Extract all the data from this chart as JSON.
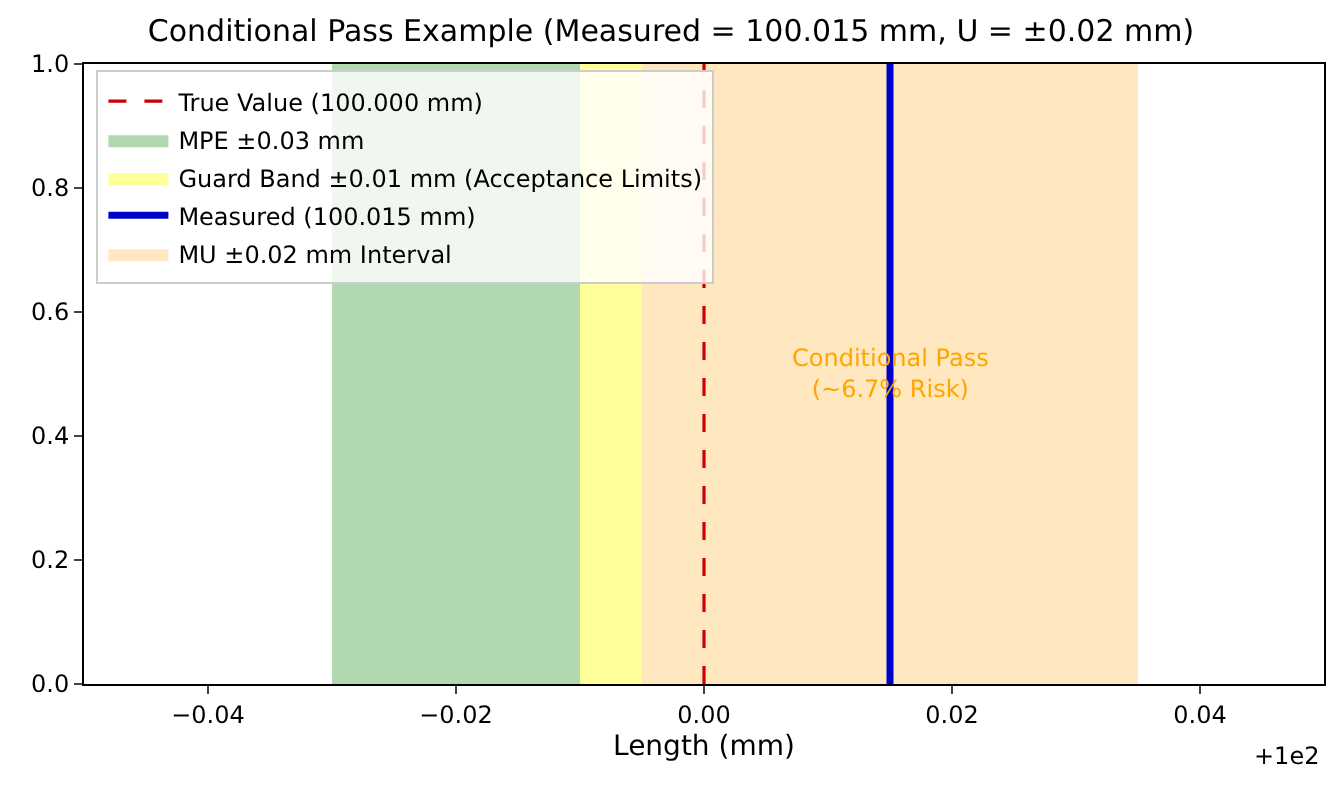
{
  "chart_data": {
    "type": "area",
    "title": "Conditional Pass Example (Measured = 100.015 mm, U = ±0.02 mm)",
    "xlabel": "Length (mm)",
    "xlim": [
      -0.05,
      0.05
    ],
    "xticks": [
      -0.04,
      -0.02,
      {
        "value": 0,
        "label": "0.00"
      },
      0.02,
      0.04
    ],
    "ylim": [
      0,
      1
    ],
    "yticks": [
      {
        "value": 0,
        "label": "0.0"
      },
      0.2,
      0.4,
      0.6,
      0.8,
      {
        "value": 1,
        "label": "1.0"
      }
    ],
    "series": [
      {
        "name": "True Value (100.000 mm)",
        "type": "line",
        "line_style": "dashed",
        "color": "#cc0000",
        "x": [
          0.0,
          0.0
        ],
        "values": [
          0,
          1
        ]
      },
      {
        "name": "MPE ±0.03 mm",
        "color": "#b2d8b2",
        "x": [
          -0.03,
          0.03
        ],
        "values": [
          1,
          1
        ]
      },
      {
        "name": "Guard Band ±0.01 mm (Acceptance Limits)",
        "color": "#ffff99",
        "x": [
          -0.01,
          0.01
        ],
        "values": [
          1,
          1
        ]
      },
      {
        "name": "Measured (100.015 mm)",
        "type": "line",
        "line_style": "solid",
        "color": "#0000cc",
        "x": [
          0.015,
          0.015
        ],
        "values": [
          0,
          1
        ]
      },
      {
        "name": "MU ±0.02 mm Interval",
        "color": "#ffe8c0",
        "x": [
          -0.005,
          0.035
        ],
        "values": [
          1,
          1
        ]
      }
    ],
    "annotations": [
      {
        "text": "Conditional Pass\n(~6.7% Risk)",
        "x": 0.015,
        "y": 0.5
      },
      "+1e2"
    ],
    "legend": "top left"
  }
}
